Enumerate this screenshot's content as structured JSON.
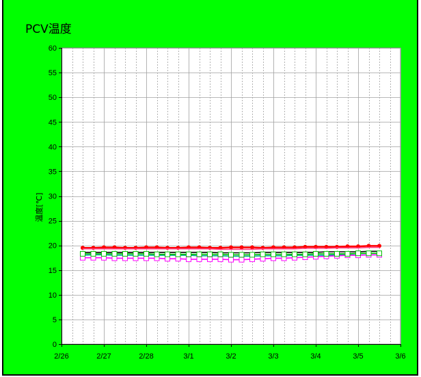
{
  "chart_data": {
    "type": "line",
    "title": "PCV温度",
    "ylabel": "温度[℃]",
    "xlabel": "",
    "ylim": [
      0,
      60
    ],
    "yticks": [
      0,
      5,
      10,
      15,
      20,
      25,
      30,
      35,
      40,
      45,
      50,
      55,
      60
    ],
    "xticks": [
      "2/26",
      "2/27",
      "2/28",
      "3/1",
      "3/2",
      "3/3",
      "3/4",
      "3/5",
      "3/6"
    ],
    "x_range_days": [
      0,
      8
    ],
    "grid": true,
    "legend": "none",
    "x": [
      0.5,
      0.75,
      1.0,
      1.25,
      1.5,
      1.75,
      2.0,
      2.25,
      2.5,
      2.75,
      3.0,
      3.25,
      3.5,
      3.75,
      4.0,
      4.25,
      4.5,
      4.75,
      5.0,
      5.25,
      5.5,
      5.75,
      6.0,
      6.25,
      6.5,
      6.75,
      7.0,
      7.25,
      7.5
    ],
    "series": [
      {
        "color": "#ff0000",
        "marker": "circle-filled",
        "values": [
          19.5,
          19.5,
          19.6,
          19.6,
          19.5,
          19.5,
          19.6,
          19.6,
          19.5,
          19.5,
          19.6,
          19.6,
          19.5,
          19.5,
          19.6,
          19.6,
          19.6,
          19.5,
          19.6,
          19.6,
          19.6,
          19.7,
          19.7,
          19.7,
          19.7,
          19.8,
          19.8,
          19.9,
          19.9
        ]
      },
      {
        "color": "#000000",
        "marker": "dash",
        "values": [
          18.6,
          18.6,
          18.6,
          18.6,
          18.6,
          18.6,
          18.6,
          18.6,
          18.6,
          18.6,
          18.6,
          18.6,
          18.6,
          18.5,
          18.5,
          18.5,
          18.5,
          18.6,
          18.6,
          18.6,
          18.6,
          18.6,
          18.6,
          18.7,
          18.7,
          18.7,
          18.7,
          18.8,
          18.8
        ]
      },
      {
        "color": "#00a0a0",
        "marker": "square-open",
        "values": [
          18.0,
          18.1,
          18.1,
          18.0,
          18.0,
          18.0,
          18.0,
          18.0,
          18.0,
          18.0,
          18.0,
          17.9,
          17.9,
          17.9,
          17.8,
          17.8,
          17.8,
          17.9,
          17.9,
          17.9,
          18.0,
          18.0,
          18.0,
          18.0,
          18.1,
          18.1,
          18.1,
          18.1,
          18.1
        ]
      },
      {
        "color": "#ff00ff",
        "marker": "square-open",
        "values": [
          17.5,
          17.5,
          17.5,
          17.4,
          17.4,
          17.4,
          17.4,
          17.4,
          17.3,
          17.3,
          17.2,
          17.2,
          17.2,
          17.2,
          17.1,
          17.1,
          17.2,
          17.3,
          17.4,
          17.4,
          17.5,
          17.6,
          17.7,
          17.8,
          17.9,
          18.0,
          18.0,
          18.1,
          18.1
        ]
      },
      {
        "color": "#00c000",
        "marker": "square-open",
        "values": [
          18.3,
          18.3,
          18.3,
          18.3,
          18.3,
          18.3,
          18.3,
          18.2,
          18.2,
          18.2,
          18.2,
          18.2,
          18.2,
          18.2,
          18.1,
          18.1,
          18.1,
          18.2,
          18.2,
          18.2,
          18.2,
          18.2,
          18.3,
          18.3,
          18.3,
          18.3,
          18.4,
          18.4,
          18.4
        ]
      },
      {
        "color": "#ff4080",
        "marker": "none",
        "values": [
          19.3,
          19.3,
          19.3,
          19.3,
          19.3,
          19.3,
          19.3,
          19.3,
          19.3,
          19.3,
          19.3,
          19.3,
          19.3,
          19.2,
          19.2,
          19.2,
          19.2,
          19.3,
          19.3,
          19.3,
          19.3,
          19.4,
          19.4,
          19.4,
          19.5,
          19.5,
          19.5,
          19.6,
          19.6
        ]
      }
    ]
  }
}
